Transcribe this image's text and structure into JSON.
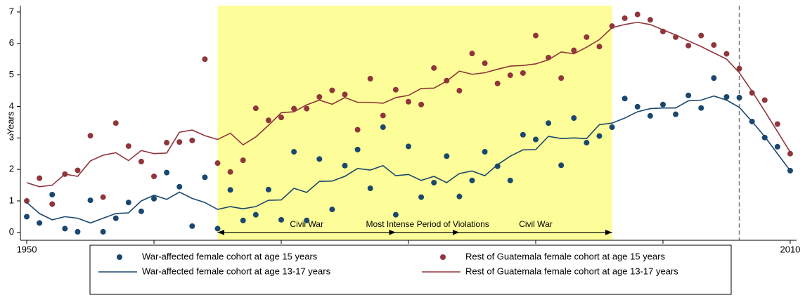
{
  "chart_data": {
    "type": "line",
    "ylabel": "Years",
    "x": [
      1950,
      1951,
      1952,
      1953,
      1954,
      1955,
      1956,
      1957,
      1958,
      1959,
      1960,
      1961,
      1962,
      1963,
      1964,
      1965,
      1966,
      1967,
      1968,
      1969,
      1970,
      1971,
      1972,
      1973,
      1974,
      1975,
      1976,
      1977,
      1978,
      1979,
      1980,
      1981,
      1982,
      1983,
      1984,
      1985,
      1986,
      1987,
      1988,
      1989,
      1990,
      1991,
      1992,
      1993,
      1994,
      1995,
      1996,
      1997,
      1998,
      1999,
      2000,
      2001,
      2002,
      2003,
      2004,
      2005,
      2006,
      2007,
      2008,
      2009,
      2010
    ],
    "series": [
      {
        "name": "War-affected female cohort at age 15 years",
        "color": "#1a476f",
        "style": "markers",
        "values": [
          0.5,
          0.3,
          1.2,
          0.12,
          0.02,
          1.02,
          0.02,
          0.45,
          0.95,
          0.67,
          1.07,
          1.9,
          1.45,
          0.2,
          1.75,
          0.12,
          1.35,
          0.38,
          0.56,
          1.36,
          0.4,
          2.56,
          0.38,
          2.33,
          0.73,
          2.12,
          2.63,
          1.4,
          3.34,
          0.56,
          2.73,
          1.12,
          1.58,
          2.42,
          1.14,
          1.65,
          2.56,
          2.1,
          1.65,
          3.1,
          2.95,
          3.47,
          2.13,
          3.63,
          2.85,
          3.06,
          3.34,
          4.25,
          3.99,
          3.7,
          4.06,
          3.75,
          4.35,
          3.95,
          4.9,
          4.3,
          4.28,
          3.52,
          3.01,
          2.72,
          1.96
        ]
      },
      {
        "name": "Rest of Guatemala female cohort at age 15 years",
        "color": "#90353b",
        "style": "markers",
        "values": [
          1.0,
          1.72,
          0.9,
          1.85,
          1.97,
          3.07,
          1.12,
          3.47,
          2.74,
          2.25,
          1.78,
          2.85,
          2.87,
          2.92,
          5.5,
          2.2,
          1.92,
          2.29,
          3.94,
          3.56,
          3.65,
          3.93,
          3.93,
          4.3,
          4.51,
          4.38,
          3.26,
          4.88,
          3.71,
          4.53,
          4.15,
          4.06,
          5.22,
          4.82,
          4.5,
          5.68,
          5.37,
          4.73,
          4.99,
          5.06,
          6.25,
          5.55,
          4.9,
          5.78,
          6.2,
          5.9,
          6.55,
          6.8,
          6.92,
          6.75,
          6.38,
          6.2,
          5.93,
          6.25,
          5.95,
          5.67,
          5.2,
          4.43,
          4.2,
          3.44,
          2.5
        ]
      },
      {
        "name": "War-affected female cohort at age 13-17 years",
        "color": "#1a476f",
        "style": "line",
        "values": [
          0.95,
          0.6,
          0.4,
          0.5,
          0.45,
          0.3,
          0.45,
          0.6,
          0.62,
          1.0,
          1.18,
          1.05,
          1.28,
          1.08,
          0.95,
          0.73,
          0.82,
          0.75,
          0.82,
          1.02,
          1.03,
          1.4,
          1.27,
          1.62,
          1.63,
          1.78,
          2.03,
          1.98,
          2.12,
          1.8,
          1.84,
          1.65,
          1.78,
          1.58,
          1.87,
          1.95,
          1.8,
          2.15,
          2.42,
          2.62,
          2.63,
          3.05,
          2.98,
          3.0,
          2.98,
          3.42,
          3.47,
          3.63,
          3.83,
          3.93,
          3.95,
          3.95,
          4.18,
          4.2,
          4.33,
          4.2,
          3.97,
          3.52,
          3.04,
          2.5,
          1.96
        ]
      },
      {
        "name": "Rest of Guatemala female cohort at age 13-17 years",
        "color": "#90353b",
        "style": "line",
        "values": [
          1.58,
          1.45,
          1.5,
          1.85,
          1.78,
          2.27,
          2.45,
          2.53,
          2.28,
          2.6,
          2.5,
          2.52,
          3.18,
          3.25,
          3.07,
          2.95,
          3.15,
          2.78,
          3.03,
          3.4,
          3.8,
          3.83,
          4.05,
          4.2,
          4.07,
          4.28,
          4.13,
          4.13,
          4.1,
          4.28,
          4.35,
          4.57,
          4.58,
          4.8,
          5.12,
          5.02,
          5.07,
          5.18,
          5.28,
          5.3,
          5.35,
          5.48,
          5.73,
          5.67,
          5.88,
          6.12,
          6.5,
          6.6,
          6.67,
          6.6,
          6.43,
          6.27,
          6.08,
          5.9,
          5.7,
          5.5,
          5.07,
          4.48,
          3.85,
          3.2,
          2.55
        ]
      }
    ],
    "xlim": [
      1949.5,
      2010.5
    ],
    "xticks": [
      1950,
      1960,
      1970,
      1980,
      1990,
      2000,
      2010
    ],
    "ylim": [
      -0.25,
      7.2
    ],
    "yticks": [
      0,
      1,
      2,
      3,
      4,
      5,
      6,
      7
    ],
    "shade": {
      "start": 1965,
      "end": 1996,
      "color": "#fdfd99"
    },
    "vline": 2006,
    "periods": [
      {
        "label": "Civil War",
        "start": 1965,
        "end": 1979
      },
      {
        "label": "Most Intense Period of Violations",
        "start": 1979,
        "end": 1984
      },
      {
        "label": "Civil War",
        "start": 1984,
        "end": 1996
      }
    ],
    "legend": "bottom"
  }
}
